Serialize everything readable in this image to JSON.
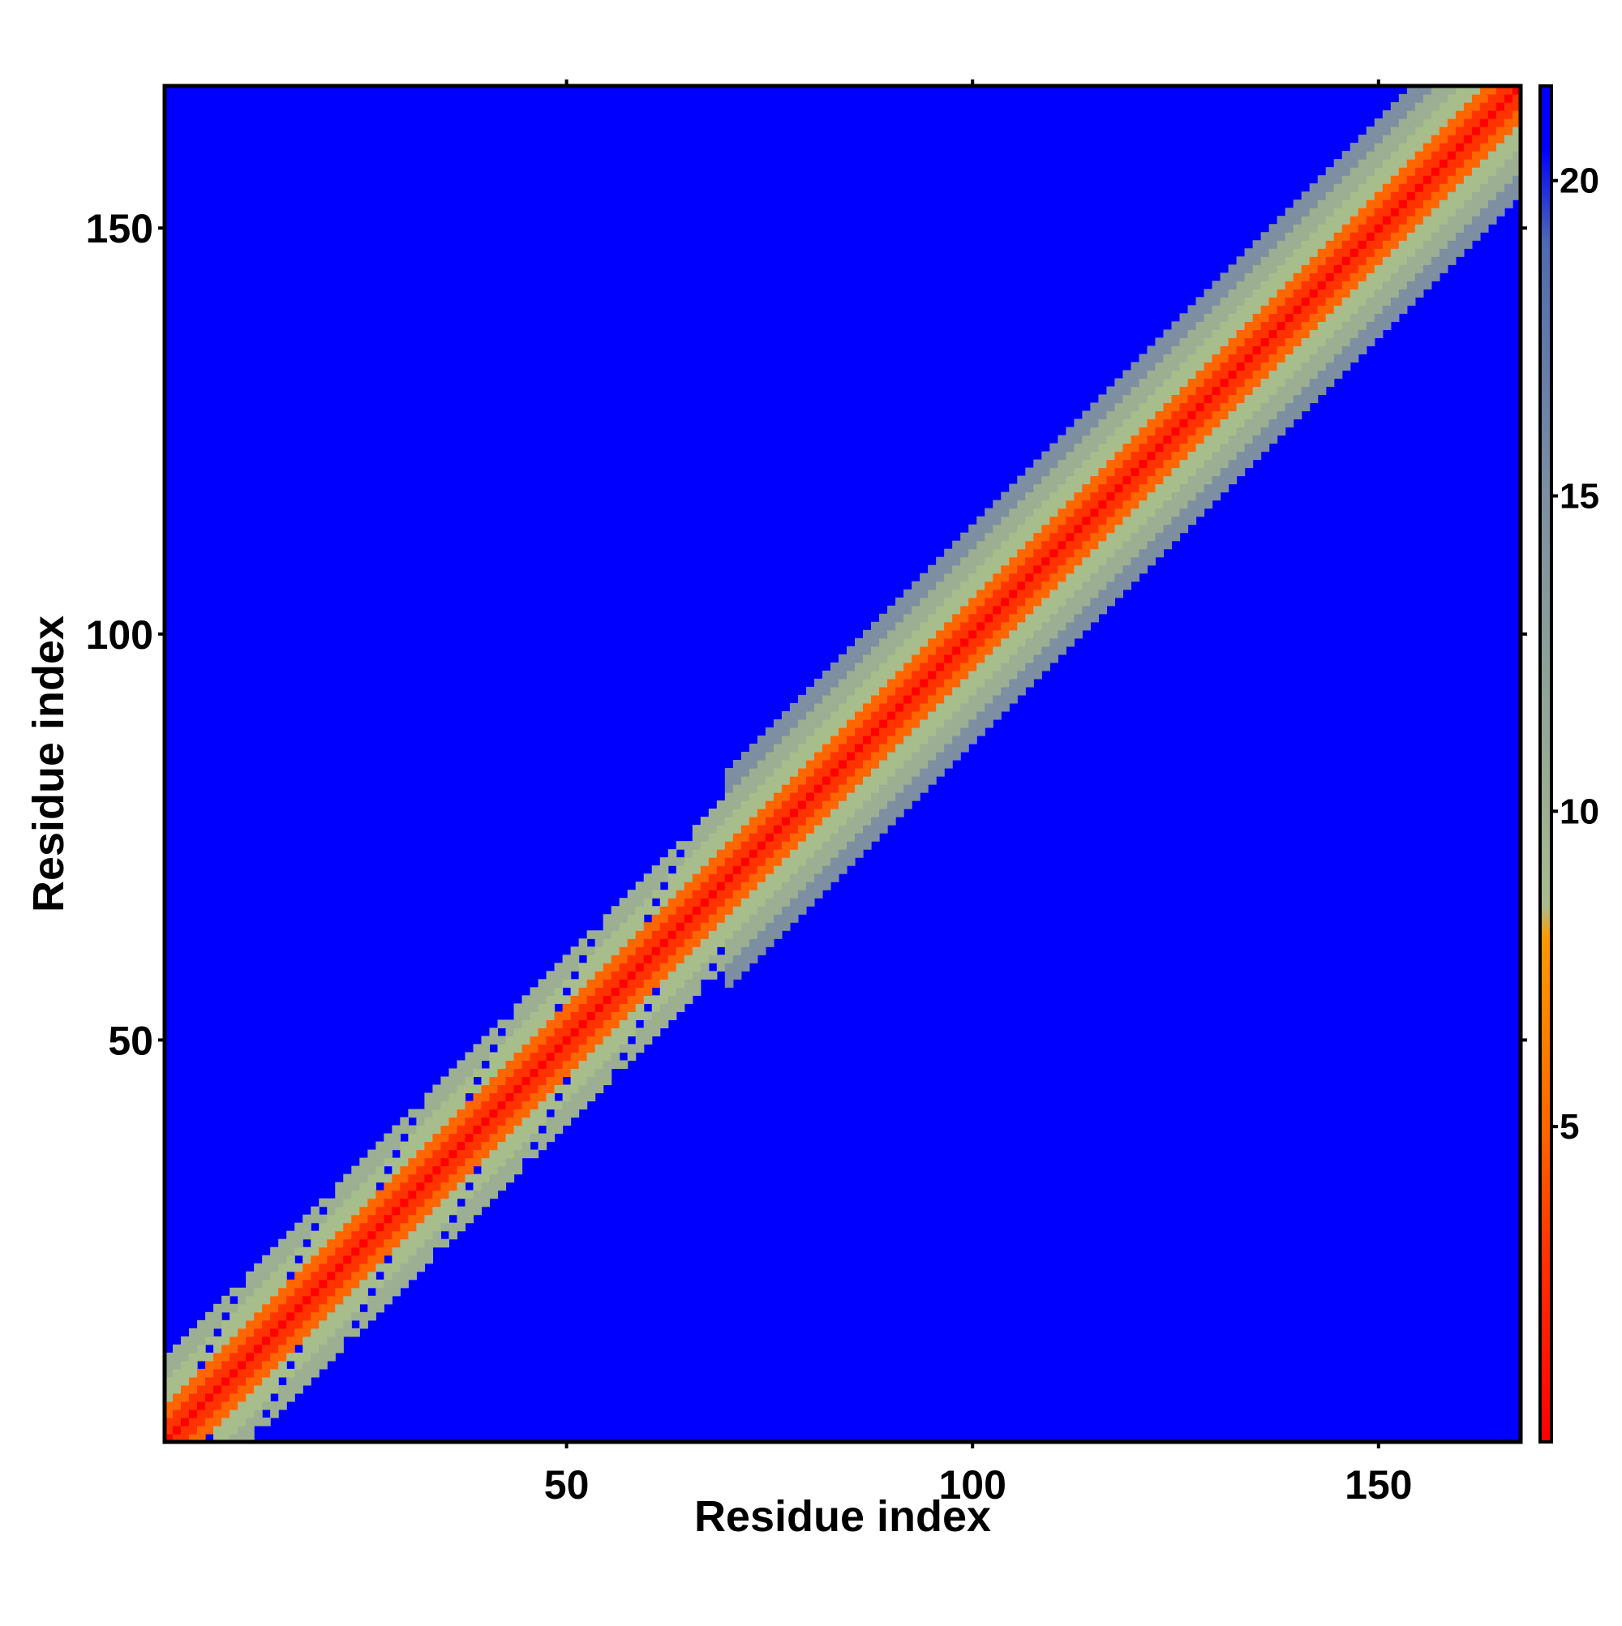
{
  "chart_data": {
    "type": "heatmap",
    "title": "",
    "xlabel": "Residue index",
    "ylabel": "Residue index",
    "x_range": [
      1,
      167
    ],
    "y_range": [
      1,
      167
    ],
    "x_ticks": [
      50,
      100,
      150
    ],
    "y_ticks": [
      50,
      100,
      150
    ],
    "grid": false,
    "legend": "right",
    "colorbar": {
      "ticks": [
        5,
        10,
        15,
        20
      ],
      "range": [
        0,
        21.5
      ],
      "color_stops": [
        {
          "value": 0,
          "color": "#ff0000"
        },
        {
          "value": 3,
          "color": "#ff3300"
        },
        {
          "value": 5,
          "color": "#ff6600"
        },
        {
          "value": 8,
          "color": "#ff9900"
        },
        {
          "value": 8.5,
          "color": "#a8bd8c"
        },
        {
          "value": 10,
          "color": "#9caf92"
        },
        {
          "value": 15,
          "color": "#7d8fa0"
        },
        {
          "value": 19,
          "color": "#4f6ab0"
        },
        {
          "value": 20.5,
          "color": "#0000ff"
        }
      ]
    },
    "data_description_values": {
      "diagonal_value": 0,
      "saturated_value": 21,
      "band_halfwidth_residues": 13
    }
  }
}
